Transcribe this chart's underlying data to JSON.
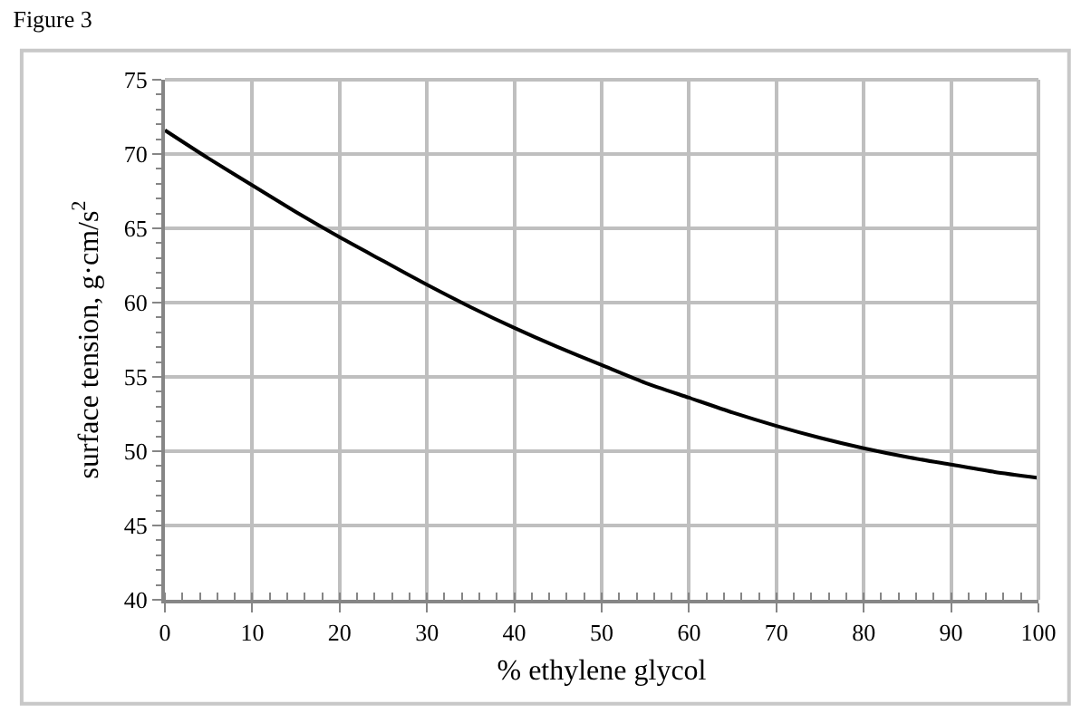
{
  "chart_data": {
    "type": "line",
    "title": "Figure 3",
    "xlabel": "% ethylene glycol",
    "ylabel": "surface tension, g·cm/s$^{2}$",
    "x": [
      0,
      5,
      10,
      15,
      20,
      25,
      30,
      35,
      40,
      45,
      50,
      55,
      60,
      65,
      70,
      75,
      80,
      85,
      90,
      95,
      100
    ],
    "series": [
      {
        "color": "#000000",
        "values": [
          71.6,
          69.7,
          67.9,
          66.1,
          64.4,
          62.8,
          61.2,
          59.7,
          58.3,
          57.0,
          55.8,
          54.6,
          53.6,
          52.6,
          51.7,
          50.9,
          50.2,
          49.6,
          49.1,
          48.6,
          48.2
        ]
      }
    ],
    "xlim": [
      0,
      100
    ],
    "xticks": [
      0,
      10,
      20,
      30,
      40,
      50,
      60,
      70,
      80,
      90,
      100
    ],
    "ylim": [
      40,
      75
    ],
    "yticks": [
      40,
      45,
      50,
      55,
      60,
      65,
      70,
      75
    ],
    "grid": true,
    "marker": "none",
    "line_style": "solid"
  }
}
